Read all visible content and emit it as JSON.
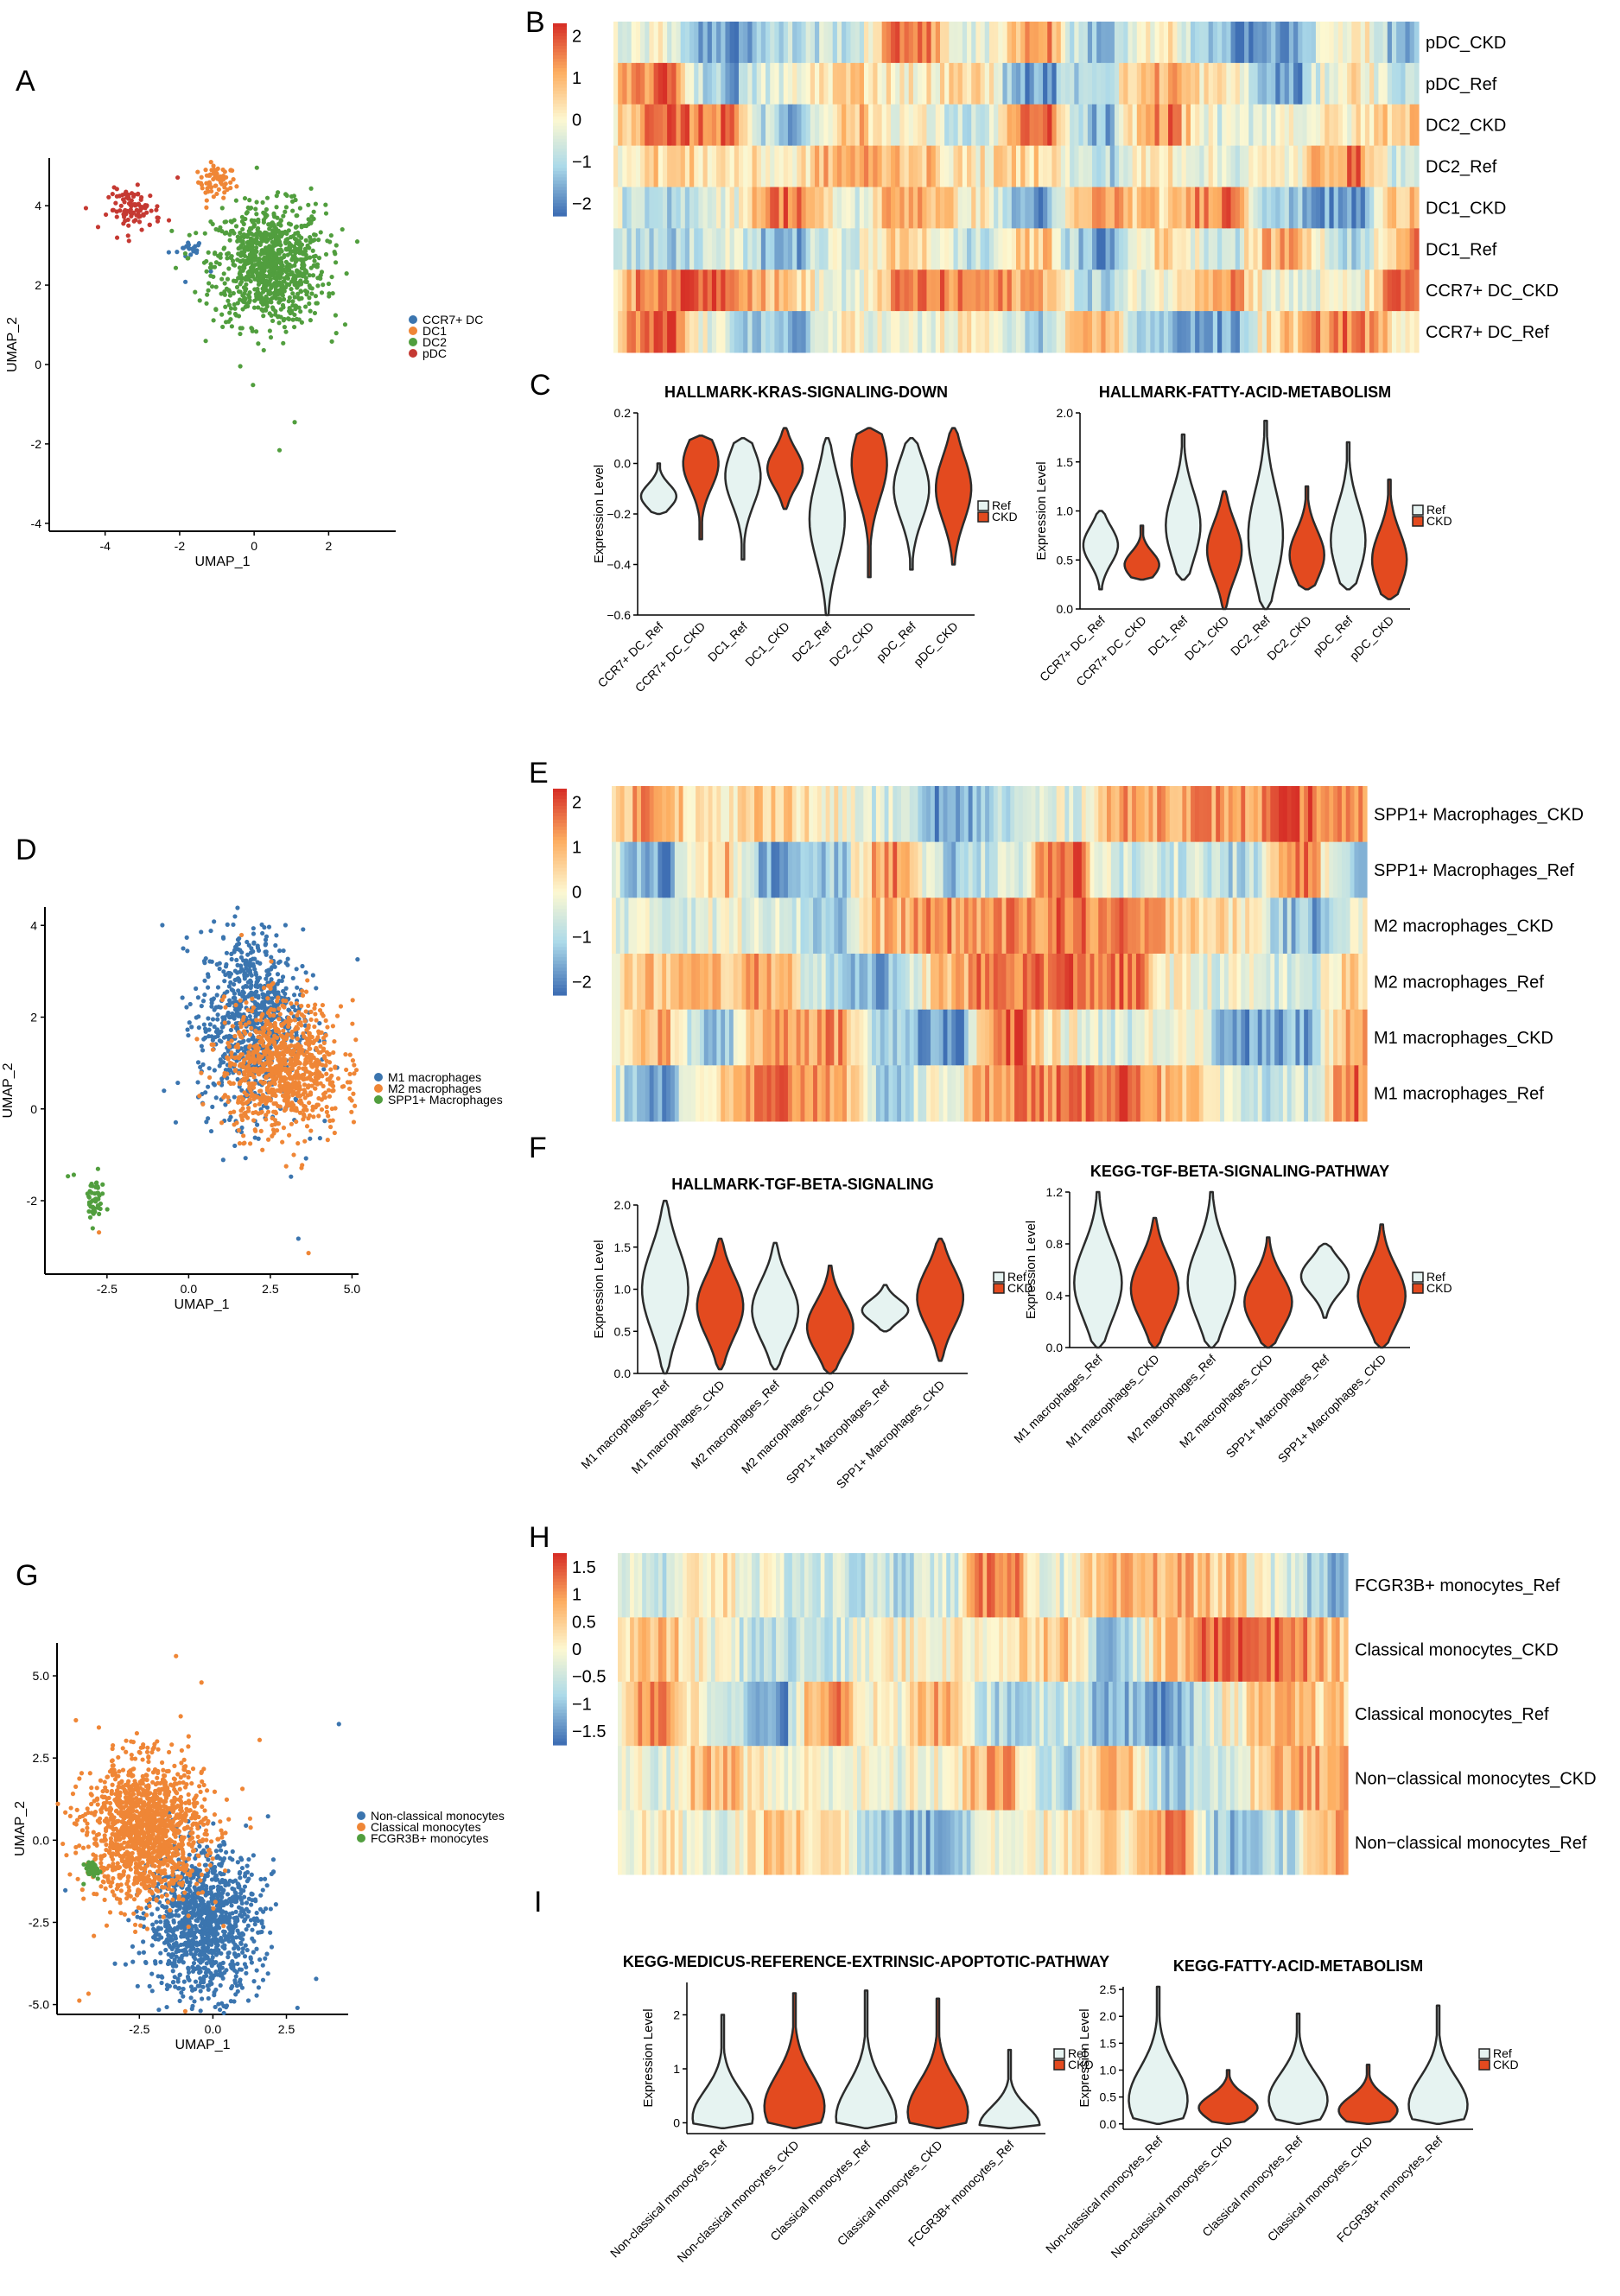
{
  "figure": {
    "panel_letters": [
      "A",
      "B",
      "C",
      "D",
      "E",
      "F",
      "G",
      "H",
      "I"
    ],
    "group_labels": [
      "Ref",
      "CKD"
    ],
    "colors": {
      "ref_fill": "#e6f3f1",
      "ckd_fill": "#e34a1f",
      "violin_stroke": "#2b2b2b",
      "heat_low": "#3f6fb4",
      "heat_mid": "#fdf8d1",
      "heat_high": "#d73027",
      "blue": "#3b75af",
      "orange": "#ef8636",
      "green": "#519e3e",
      "red": "#c53932"
    }
  },
  "chart_data": [
    {
      "panel": "A",
      "type": "scatter",
      "xlabel": "UMAP_1",
      "ylabel": "UMAP_2",
      "xlim": [
        -5.5,
        3.8
      ],
      "ylim": [
        -4.2,
        5.2
      ],
      "xticks": [
        -4,
        -2,
        0,
        2
      ],
      "yticks": [
        -4,
        -2,
        0,
        2,
        4
      ],
      "series": [
        {
          "name": "CCR7+ DC",
          "color": "#3b75af",
          "n": 18,
          "center": [
            -1.7,
            2.9
          ],
          "spread": [
            0.18,
            0.12
          ]
        },
        {
          "name": "DC1",
          "color": "#ef8636",
          "n": 60,
          "center": [
            -1.0,
            4.6
          ],
          "spread": [
            0.25,
            0.2
          ]
        },
        {
          "name": "DC2",
          "color": "#519e3e",
          "n": 900,
          "center": [
            0.4,
            2.5
          ],
          "spread": [
            0.75,
            0.75
          ]
        },
        {
          "name": "pDC",
          "color": "#c53932",
          "n": 90,
          "center": [
            -3.2,
            3.9
          ],
          "spread": [
            0.35,
            0.25
          ]
        }
      ]
    },
    {
      "panel": "B",
      "type": "heatmap",
      "rows": [
        "pDC_CKD",
        "pDC_Ref",
        "DC2_CKD",
        "DC2_Ref",
        "DC1_CKD",
        "DC1_Ref",
        "CCR7+ DC_CKD",
        "CCR7+ DC_Ref"
      ],
      "colorbar": {
        "min": -2.3,
        "max": 2.3,
        "ticks": [
          2,
          1,
          0,
          -1,
          -2
        ],
        "tick_labels": [
          "2",
          "1",
          "0",
          "−1",
          "−2"
        ]
      },
      "n_columns": 180
    },
    {
      "panel": "C-left",
      "type": "violin",
      "title": "HALLMARK-KRAS-SIGNALING-DOWN",
      "ylabel": "Expression Level",
      "ylim": [
        -0.6,
        0.2
      ],
      "yticks": [
        0.2,
        0.0,
        -0.2,
        -0.4,
        -0.6
      ],
      "ytick_labels": [
        "0.2",
        "0.0",
        "−0.2",
        "−0.4",
        "−0.6"
      ],
      "categories": [
        "CCR7+ DC_Ref",
        "CCR7+ DC_CKD",
        "DC1_Ref",
        "DC1_CKD",
        "DC2_Ref",
        "DC2_CKD",
        "pDC_Ref",
        "pDC_CKD"
      ],
      "groups": [
        "Ref",
        "CKD",
        "Ref",
        "CKD",
        "Ref",
        "CKD",
        "Ref",
        "CKD"
      ],
      "ranges": [
        [
          -0.2,
          0.0
        ],
        [
          -0.3,
          0.11
        ],
        [
          -0.38,
          0.1
        ],
        [
          -0.18,
          0.14
        ],
        [
          -0.6,
          0.1
        ],
        [
          -0.45,
          0.14
        ],
        [
          -0.42,
          0.1
        ],
        [
          -0.4,
          0.14
        ]
      ],
      "modes": [
        -0.13,
        0.0,
        -0.05,
        -0.02,
        -0.22,
        0.0,
        -0.1,
        -0.1
      ]
    },
    {
      "panel": "C-right",
      "type": "violin",
      "title": "HALLMARK-FATTY-ACID-METABOLISM",
      "ylabel": "Expression Level",
      "ylim": [
        0.0,
        2.0
      ],
      "yticks": [
        2.0,
        1.5,
        1.0,
        0.5,
        0.0
      ],
      "ytick_labels": [
        "2.0",
        "1.5",
        "1.0",
        "0.5",
        "0.0"
      ],
      "categories": [
        "CCR7+ DC_Ref",
        "CCR7+ DC_CKD",
        "DC1_Ref",
        "DC1_CKD",
        "DC2_Ref",
        "DC2_CKD",
        "pDC_Ref",
        "pDC_CKD"
      ],
      "groups": [
        "Ref",
        "CKD",
        "Ref",
        "CKD",
        "Ref",
        "CKD",
        "Ref",
        "CKD"
      ],
      "ranges": [
        [
          0.2,
          1.0
        ],
        [
          0.3,
          0.85
        ],
        [
          0.3,
          1.78
        ],
        [
          0.0,
          1.2
        ],
        [
          0.0,
          1.92
        ],
        [
          0.2,
          1.25
        ],
        [
          0.2,
          1.7
        ],
        [
          0.1,
          1.32
        ]
      ],
      "modes": [
        0.65,
        0.45,
        0.85,
        0.6,
        0.75,
        0.55,
        0.7,
        0.5
      ]
    },
    {
      "panel": "D",
      "type": "scatter",
      "xlabel": "UMAP_1",
      "ylabel": "UMAP_2",
      "xlim": [
        -4.4,
        5.2
      ],
      "ylim": [
        -3.6,
        4.4
      ],
      "xticks": [
        -2.5,
        0.0,
        2.5,
        5.0
      ],
      "xtick_labels": [
        "-2.5",
        "0.0",
        "2.5",
        "5.0"
      ],
      "yticks": [
        -2,
        0,
        2,
        4
      ],
      "series": [
        {
          "name": "M1 macrophages",
          "color": "#3b75af",
          "n": 800,
          "center": [
            1.9,
            1.9
          ],
          "spread": [
            0.8,
            1.0
          ]
        },
        {
          "name": "M2 macrophages",
          "color": "#ef8636",
          "n": 850,
          "center": [
            2.9,
            0.9
          ],
          "spread": [
            0.9,
            0.7
          ]
        },
        {
          "name": "SPP1+ Macrophages",
          "color": "#519e3e",
          "n": 45,
          "center": [
            -2.9,
            -2.0
          ],
          "spread": [
            0.15,
            0.25
          ]
        }
      ]
    },
    {
      "panel": "E",
      "type": "heatmap",
      "rows": [
        "SPP1+ Macrophages_CKD",
        "SPP1+ Macrophages_Ref",
        "M2 macrophages_CKD",
        "M2 macrophages_Ref",
        "M1 macrophages_CKD",
        "M1 macrophages_Ref"
      ],
      "colorbar": {
        "min": -2.3,
        "max": 2.3,
        "ticks": [
          2,
          1,
          0,
          -1,
          -2
        ],
        "tick_labels": [
          "2",
          "1",
          "0",
          "−1",
          "−2"
        ]
      },
      "n_columns": 180
    },
    {
      "panel": "F-left",
      "type": "violin",
      "title": "HALLMARK-TGF-BETA-SIGNALING",
      "ylabel": "Expression Level",
      "ylim": [
        0.0,
        2.0
      ],
      "yticks": [
        2.0,
        1.5,
        1.0,
        0.5,
        0.0
      ],
      "ytick_labels": [
        "2.0",
        "1.5",
        "1.0",
        "0.5",
        "0.0"
      ],
      "categories": [
        "M1 macrophages_Ref",
        "M1 macrophages_CKD",
        "M2 macrophages_Ref",
        "M2 macrophages_CKD",
        "SPP1+ Macrophages_Ref",
        "SPP1+ Macrophages_CKD"
      ],
      "groups": [
        "Ref",
        "CKD",
        "Ref",
        "CKD",
        "Ref",
        "CKD"
      ],
      "ranges": [
        [
          0.0,
          2.05
        ],
        [
          0.05,
          1.6
        ],
        [
          0.05,
          1.55
        ],
        [
          0.0,
          1.28
        ],
        [
          0.5,
          1.05
        ],
        [
          0.15,
          1.6
        ]
      ],
      "modes": [
        1.0,
        0.8,
        0.75,
        0.55,
        0.75,
        0.9
      ]
    },
    {
      "panel": "F-right",
      "type": "violin",
      "title": "KEGG-TGF-BETA-SIGNALING-PATHWAY",
      "ylabel": "Expression Level",
      "ylim": [
        0.0,
        1.2
      ],
      "yticks": [
        1.2,
        0.8,
        0.4,
        0.0
      ],
      "ytick_labels": [
        "1.2",
        "0.8",
        "0.4",
        "0.0"
      ],
      "categories": [
        "M1 macrophages_Ref",
        "M1 macrophages_CKD",
        "M2 macrophages_Ref",
        "M2 macrophages_CKD",
        "SPP1+ Macrophages_Ref",
        "SPP1+ Macrophages_CKD"
      ],
      "groups": [
        "Ref",
        "CKD",
        "Ref",
        "CKD",
        "Ref",
        "CKD"
      ],
      "ranges": [
        [
          0.0,
          1.2
        ],
        [
          0.0,
          1.0
        ],
        [
          0.0,
          1.2
        ],
        [
          0.0,
          0.85
        ],
        [
          0.23,
          0.8
        ],
        [
          0.0,
          0.95
        ]
      ],
      "modes": [
        0.5,
        0.45,
        0.5,
        0.35,
        0.55,
        0.4
      ]
    },
    {
      "panel": "G",
      "type": "scatter",
      "xlabel": "UMAP_1",
      "ylabel": "UMAP_2",
      "xlim": [
        -5.3,
        4.6
      ],
      "ylim": [
        -5.3,
        6.0
      ],
      "xticks": [
        -2.5,
        0.0,
        2.5
      ],
      "xtick_labels": [
        "-2.5",
        "0.0",
        "2.5"
      ],
      "yticks": [
        5.0,
        2.5,
        0.0,
        -2.5,
        -5.0
      ],
      "ytick_labels": [
        "5.0",
        "2.5",
        "0.0",
        "-2.5",
        "-5.0"
      ],
      "series": [
        {
          "name": "Non-classical monocytes",
          "color": "#3b75af",
          "n": 1100,
          "center": [
            -0.3,
            -2.5
          ],
          "spread": [
            0.95,
            1.1
          ]
        },
        {
          "name": "Classical monocytes",
          "color": "#ef8636",
          "n": 1400,
          "center": [
            -2.3,
            0.3
          ],
          "spread": [
            1.0,
            1.05
          ]
        },
        {
          "name": "FCGR3B+ monocytes",
          "color": "#519e3e",
          "n": 30,
          "center": [
            -4.1,
            -0.9
          ],
          "spread": [
            0.12,
            0.12
          ]
        }
      ]
    },
    {
      "panel": "H",
      "type": "heatmap",
      "rows": [
        "FCGR3B+ monocytes_Ref",
        "Classical monocytes_CKD",
        "Classical monocytes_Ref",
        "Non−classical monocytes_CKD",
        "Non−classical monocytes_Ref"
      ],
      "colorbar": {
        "min": -1.75,
        "max": 1.75,
        "ticks": [
          1.5,
          1,
          0.5,
          0,
          -0.5,
          -1,
          -1.5
        ],
        "tick_labels": [
          "1.5",
          "1",
          "0.5",
          "0",
          "−0.5",
          "−1",
          "−1.5"
        ]
      },
      "n_columns": 180
    },
    {
      "panel": "I-left",
      "type": "violin",
      "title": "KEGG-MEDICUS-REFERENCE-EXTRINSIC-APOPTOTIC-PATHWAY",
      "ylabel": "Expression Level",
      "ylim": [
        -0.2,
        2.6
      ],
      "yticks": [
        2,
        1,
        0
      ],
      "ytick_labels": [
        "2",
        "1",
        "0"
      ],
      "categories": [
        "Non-classical monocytes_Ref",
        "Non-classical monocytes_CKD",
        "Classical monocytes_Ref",
        "Classical monocytes_CKD",
        "FCGR3B+ monocytes_Ref"
      ],
      "groups": [
        "Ref",
        "CKD",
        "Ref",
        "CKD",
        "Ref"
      ],
      "ranges": [
        [
          -0.1,
          2.0
        ],
        [
          -0.1,
          2.4
        ],
        [
          -0.1,
          2.45
        ],
        [
          -0.1,
          2.3
        ],
        [
          -0.1,
          1.35
        ]
      ],
      "modes": [
        0.1,
        0.3,
        0.1,
        0.2,
        -0.05
      ]
    },
    {
      "panel": "I-right",
      "type": "violin",
      "title": "KEGG-FATTY-ACID-METABOLISM",
      "ylabel": "Expression Level",
      "ylim": [
        -0.1,
        2.55
      ],
      "yticks": [
        2.5,
        2.0,
        1.5,
        1.0,
        0.5,
        0.0
      ],
      "ytick_labels": [
        "2.5",
        "2.0",
        "1.5",
        "1.0",
        "0.5",
        "0.0"
      ],
      "categories": [
        "Non-classical monocytes_Ref",
        "Non-classical monocytes_CKD",
        "Classical monocytes_Ref",
        "Classical monocytes_CKD",
        "FCGR3B+ monocytes_Ref"
      ],
      "groups": [
        "Ref",
        "CKD",
        "Ref",
        "CKD",
        "Ref"
      ],
      "ranges": [
        [
          0.0,
          2.55
        ],
        [
          0.0,
          1.0
        ],
        [
          0.0,
          2.05
        ],
        [
          0.0,
          1.1
        ],
        [
          0.0,
          2.2
        ]
      ],
      "modes": [
        0.45,
        0.3,
        0.45,
        0.25,
        0.35
      ]
    }
  ]
}
